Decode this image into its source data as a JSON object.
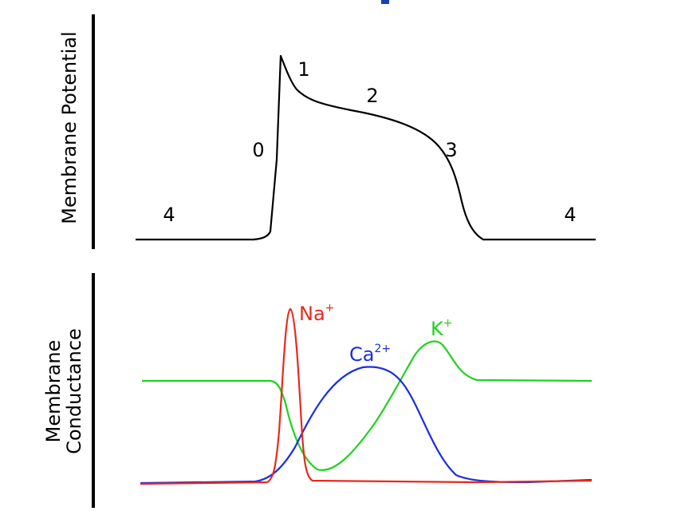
{
  "colors": {
    "axis": "#000000",
    "potential": "#000000",
    "sodium": "#e8291c",
    "calcium": "#1a2fe0",
    "potassium": "#1ed31e",
    "clipped_title": "#1a3fb0"
  },
  "top_panel": {
    "ylabel": "Membrane Potential",
    "phase_labels": [
      "4",
      "0",
      "1",
      "2",
      "3",
      "4"
    ]
  },
  "bottom_panel": {
    "ylabel_line1": "Membrane",
    "ylabel_line2": "Conductance",
    "ions": {
      "na": {
        "base": "Na",
        "charge": "+"
      },
      "ca": {
        "base": "Ca",
        "charge": "2+"
      },
      "k": {
        "base": "K",
        "charge": "+"
      }
    }
  }
}
